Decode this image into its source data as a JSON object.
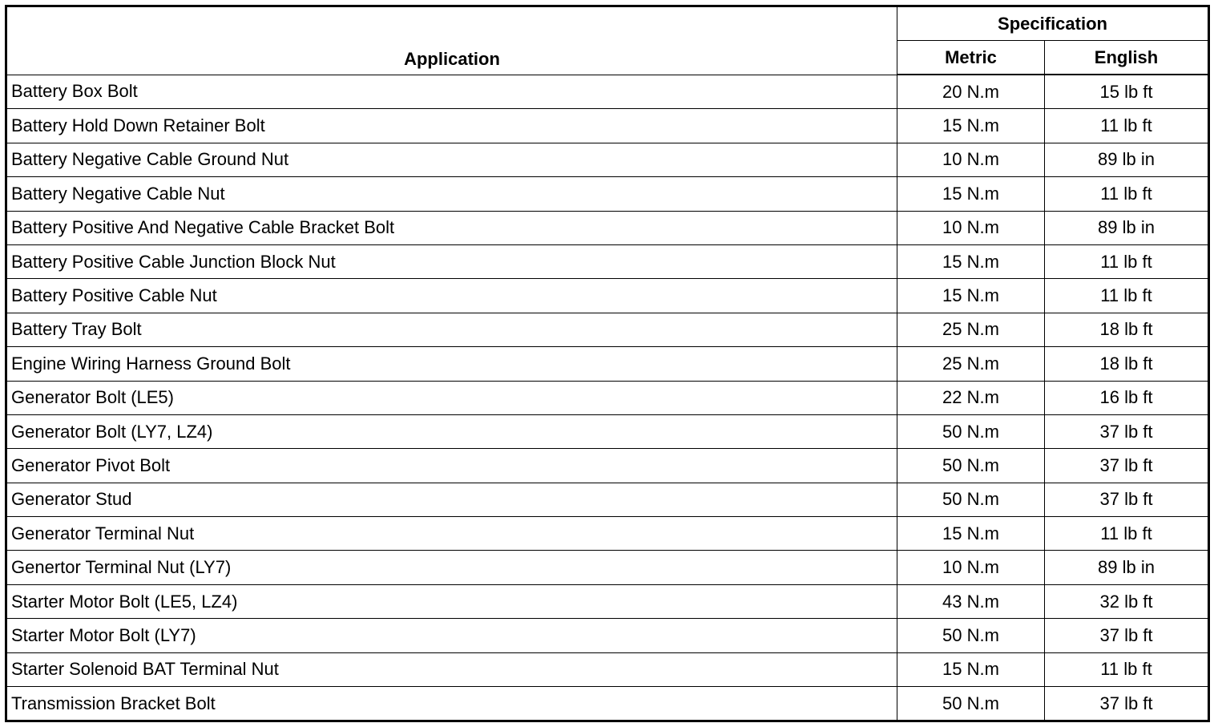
{
  "header": {
    "application": "Application",
    "specification": "Specification",
    "metric": "Metric",
    "english": "English"
  },
  "rows": [
    {
      "application": "Battery Box Bolt",
      "metric": "20 N.m",
      "english": "15 lb ft"
    },
    {
      "application": "Battery Hold Down Retainer Bolt",
      "metric": "15 N.m",
      "english": "11 lb ft"
    },
    {
      "application": "Battery Negative Cable Ground Nut",
      "metric": "10 N.m",
      "english": "89 lb in"
    },
    {
      "application": "Battery Negative Cable Nut",
      "metric": "15 N.m",
      "english": "11 lb ft"
    },
    {
      "application": "Battery Positive And Negative Cable Bracket Bolt",
      "metric": "10 N.m",
      "english": "89 lb in"
    },
    {
      "application": "Battery Positive Cable Junction Block Nut",
      "metric": "15 N.m",
      "english": "11 lb ft"
    },
    {
      "application": "Battery Positive Cable Nut",
      "metric": "15 N.m",
      "english": "11 lb ft"
    },
    {
      "application": "Battery Tray Bolt",
      "metric": "25 N.m",
      "english": "18 lb ft"
    },
    {
      "application": "Engine Wiring Harness Ground Bolt",
      "metric": "25 N.m",
      "english": "18 lb ft"
    },
    {
      "application": "Generator Bolt (LE5)",
      "metric": "22 N.m",
      "english": "16 lb ft"
    },
    {
      "application": "Generator Bolt (LY7, LZ4)",
      "metric": "50 N.m",
      "english": "37 lb ft"
    },
    {
      "application": "Generator Pivot Bolt",
      "metric": "50 N.m",
      "english": "37 lb ft"
    },
    {
      "application": "Generator Stud",
      "metric": "50 N.m",
      "english": "37 lb ft"
    },
    {
      "application": "Generator Terminal Nut",
      "metric": "15 N.m",
      "english": "11 lb ft"
    },
    {
      "application": "Genertor Terminal Nut (LY7)",
      "metric": "10 N.m",
      "english": "89 lb in"
    },
    {
      "application": "Starter Motor Bolt (LE5, LZ4)",
      "metric": "43 N.m",
      "english": "32 lb ft"
    },
    {
      "application": "Starter Motor Bolt (LY7)",
      "metric": "50 N.m",
      "english": "37 lb ft"
    },
    {
      "application": "Starter Solenoid BAT Terminal Nut",
      "metric": "15 N.m",
      "english": "11 lb ft"
    },
    {
      "application": "Transmission Bracket Bolt",
      "metric": "50 N.m",
      "english": "37 lb ft"
    }
  ]
}
